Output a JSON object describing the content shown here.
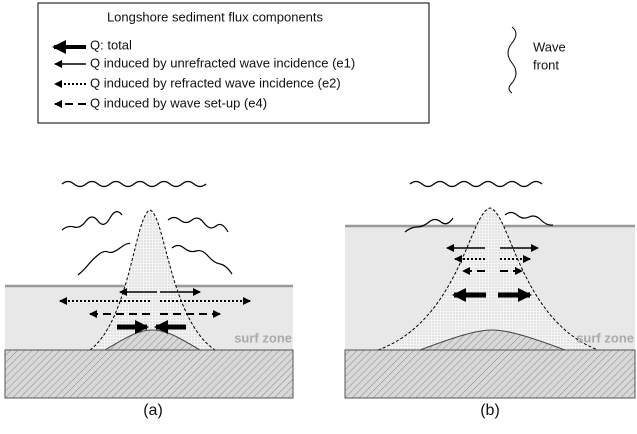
{
  "legend": {
    "title": "Longshore sediment flux components",
    "items": [
      "Q: total",
      "Q induced by unrefracted wave incidence (e1)",
      "Q induced by refracted wave incidence (e2)",
      "Q induced by wave set-up (e4)"
    ]
  },
  "wave_front": [
    "Wave",
    "front"
  ],
  "panels": [
    {
      "label": "(a)",
      "surf_zone": "surf zone"
    },
    {
      "label": "(b)",
      "surf_zone": "surf zone"
    }
  ]
}
